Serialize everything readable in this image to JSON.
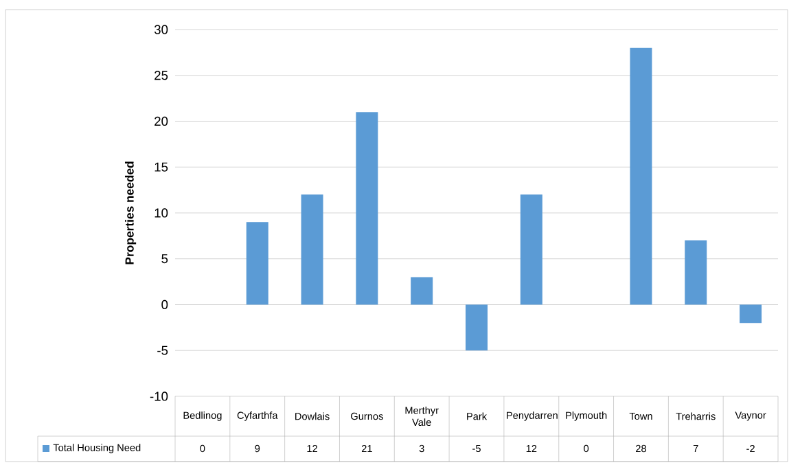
{
  "chart_data": {
    "type": "bar",
    "ylabel": "Properties needed",
    "categories": [
      "Bedlinog",
      "Cyfarthfa",
      "Dowlais",
      "Gurnos",
      "Merthyr Vale",
      "Park",
      "Penydarren",
      "Plymouth",
      "Town",
      "Treharris",
      "Vaynor"
    ],
    "series": [
      {
        "name": "Total Housing Need",
        "color": "#5b9bd5",
        "values": [
          0,
          9,
          12,
          21,
          3,
          -5,
          12,
          0,
          28,
          7,
          -2
        ]
      }
    ],
    "ylim": [
      -10,
      30
    ],
    "yticks": [
      -10,
      -5,
      0,
      5,
      10,
      15,
      20,
      25,
      30
    ],
    "grid": "y",
    "legend": "bottom left",
    "data_labels": true
  }
}
